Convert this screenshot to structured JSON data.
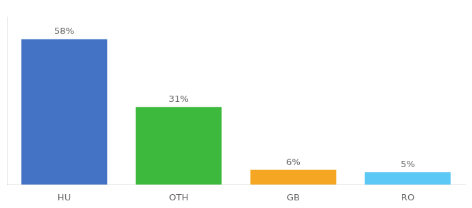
{
  "chart_data": {
    "type": "bar",
    "categories": [
      "HU",
      "OTH",
      "GB",
      "RO"
    ],
    "values": [
      58,
      31,
      6,
      5
    ],
    "value_labels": [
      "58%",
      "31%",
      "6%",
      "5%"
    ],
    "colors": [
      "#4472c4",
      "#3dba3d",
      "#f5a623",
      "#5bc8f5"
    ],
    "ylim": [
      0,
      67
    ],
    "data_labels": true,
    "tick_labels": "x",
    "grid": false
  }
}
